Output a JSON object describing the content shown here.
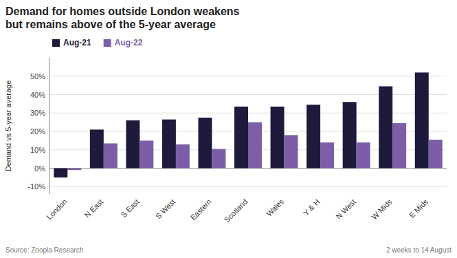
{
  "chart_data": {
    "type": "bar",
    "title": "Demand for homes outside London weakens\nbut remains above of the 5-year average",
    "categories": [
      "London",
      "N East",
      "S East",
      "S West",
      "Eastern",
      "Scotland",
      "Wales",
      "Y & H",
      "N West",
      "W Mids",
      "E Mids"
    ],
    "series": [
      {
        "name": "Aug-21",
        "color": "#1e1a3c",
        "values": [
          -5,
          21,
          26,
          26.5,
          27.5,
          33.5,
          33.5,
          34.5,
          36,
          44.5,
          52
        ]
      },
      {
        "name": "Aug-22",
        "color": "#7b5ea7",
        "values": [
          -1,
          13.5,
          15,
          13,
          10.5,
          25,
          18,
          14,
          14,
          24.5,
          15.5
        ]
      }
    ],
    "ylabel": "Demand  vs 5-year average",
    "ylim": [
      -14,
      60
    ],
    "yticks": [
      {
        "value": -10,
        "label": "-10%"
      },
      {
        "value": 0,
        "label": "0%"
      },
      {
        "value": 10,
        "label": "10%"
      },
      {
        "value": 20,
        "label": "20%"
      },
      {
        "value": 30,
        "label": "30%"
      },
      {
        "value": 40,
        "label": "40%"
      },
      {
        "value": 50,
        "label": "50%"
      }
    ],
    "grid": true,
    "legend": "upper left",
    "annotations": [
      "Source: Zoopla Research",
      "2 weeks to 14 August"
    ]
  }
}
